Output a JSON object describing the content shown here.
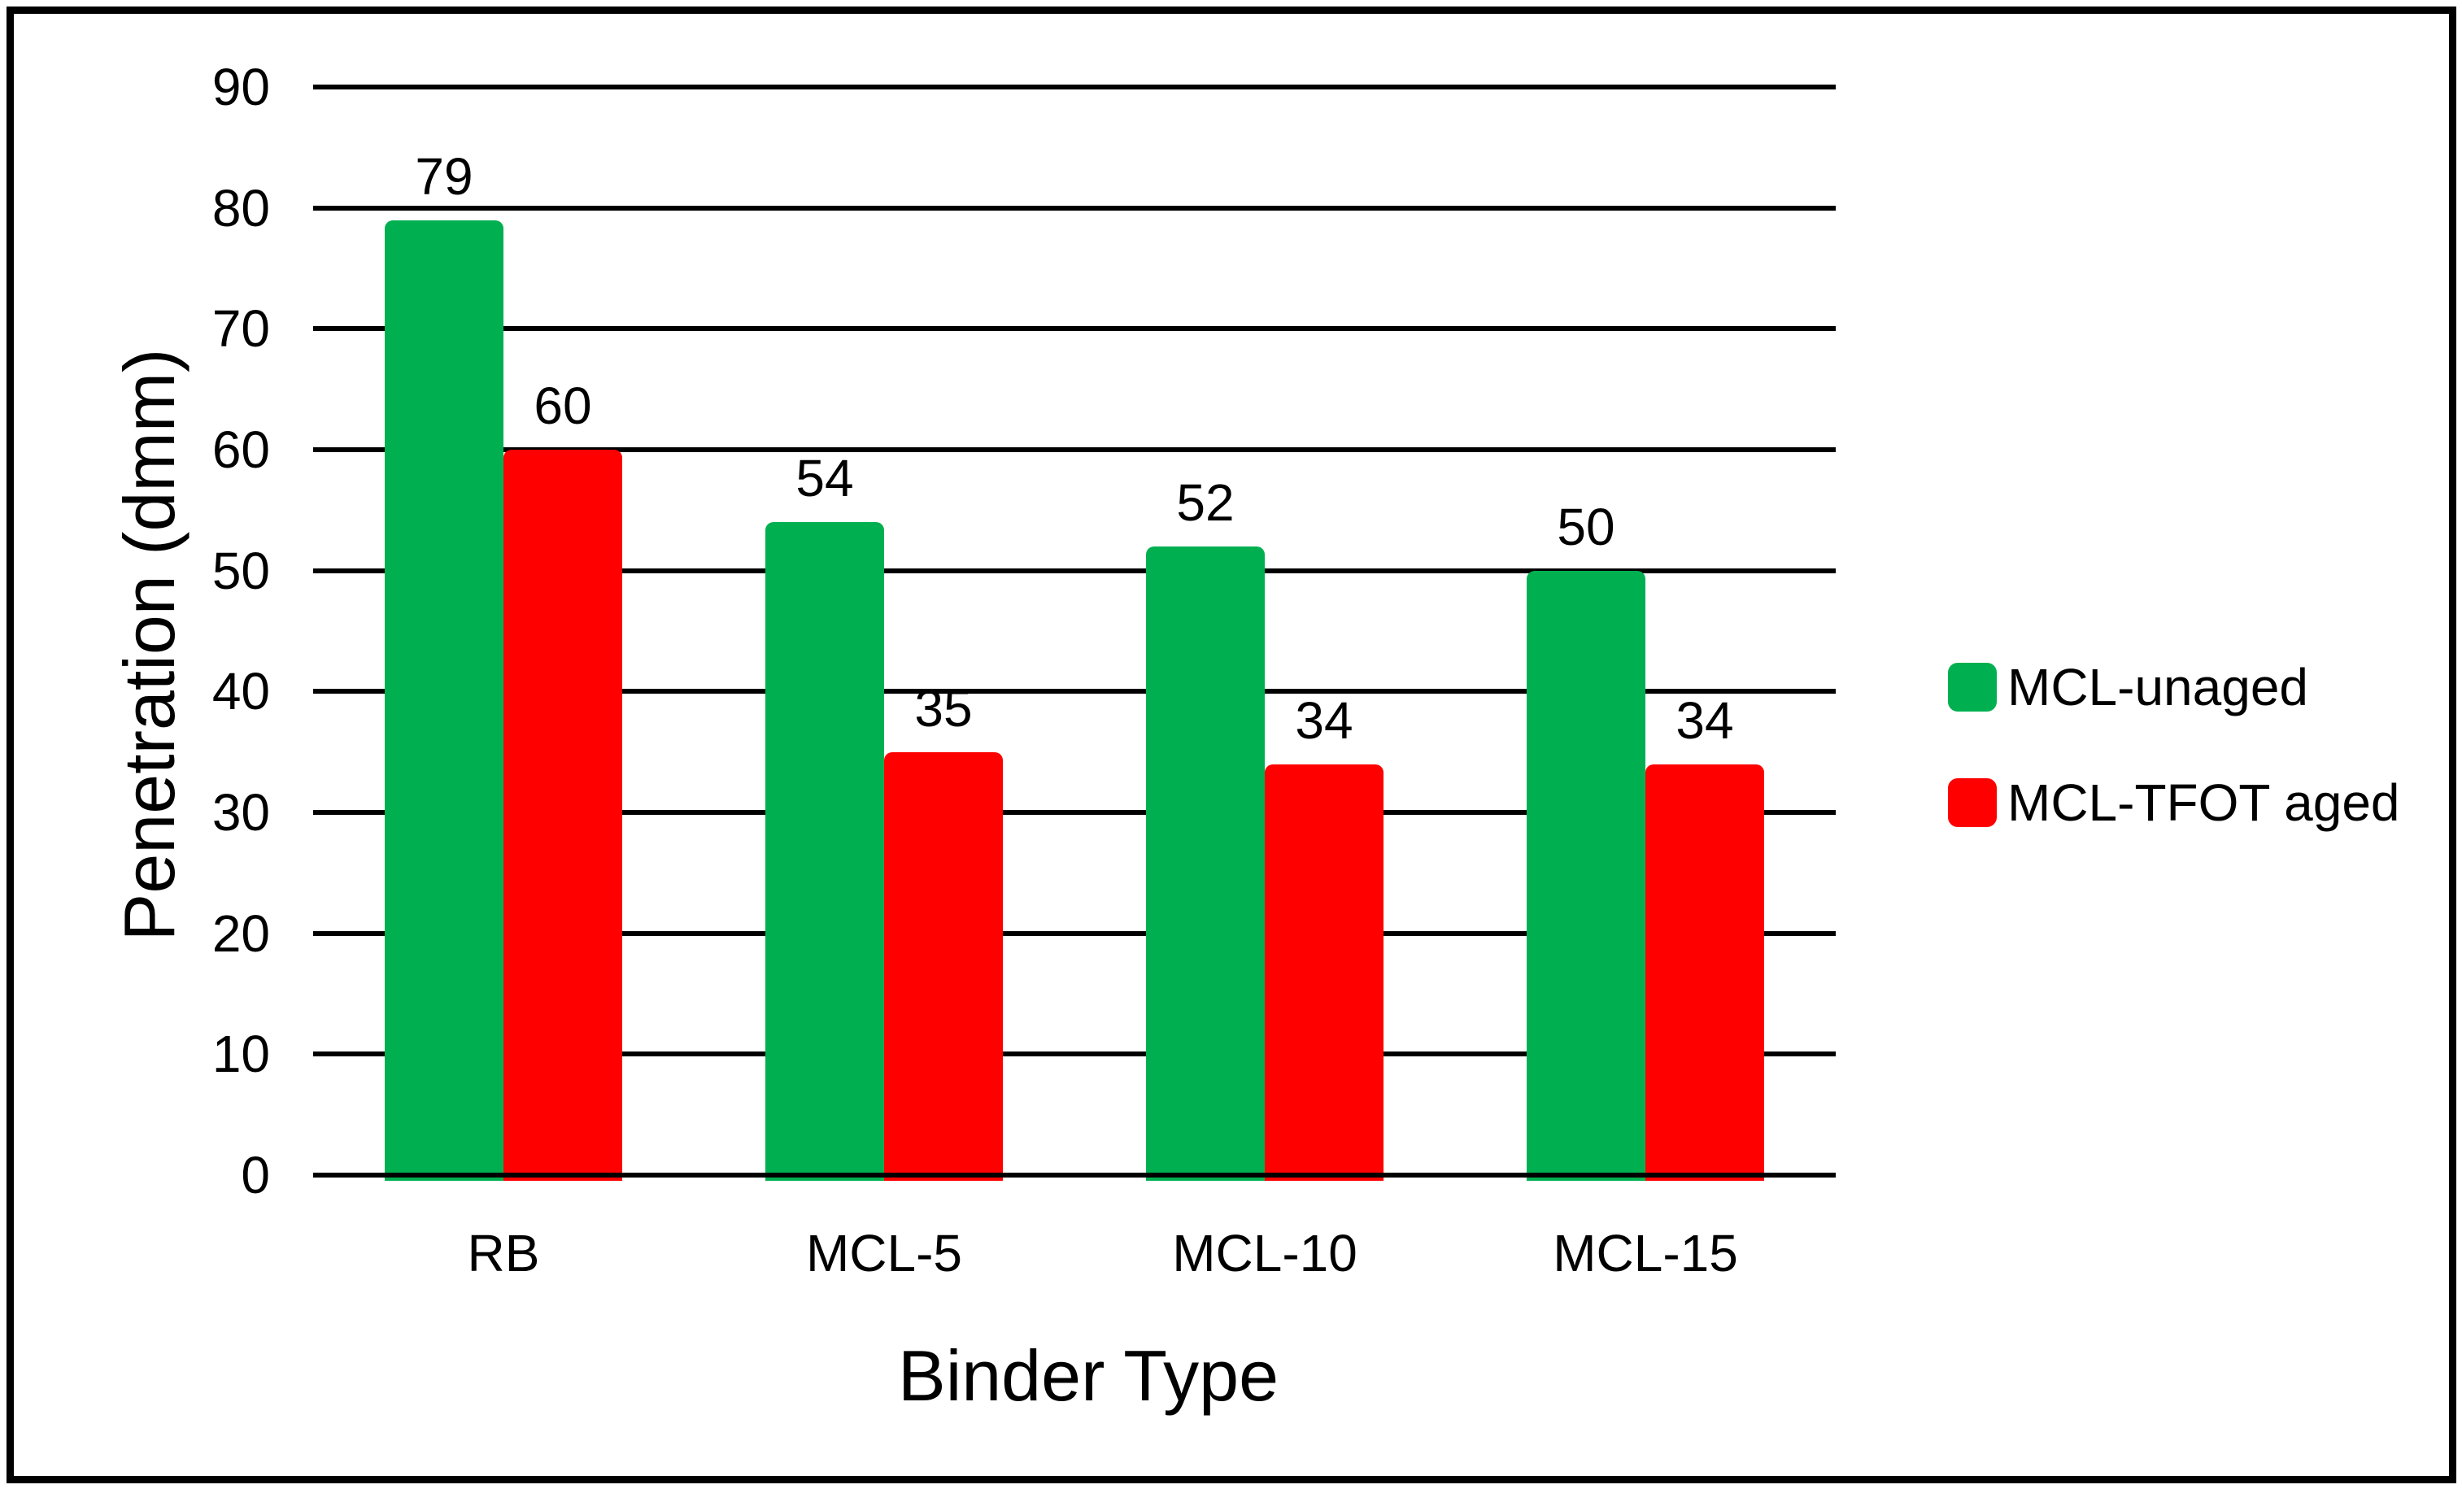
{
  "chart_data": {
    "type": "bar",
    "title": "",
    "xlabel": "Binder Type",
    "ylabel": "Penetration (dmm)",
    "categories": [
      "RB",
      "MCL-5",
      "MCL-10",
      "MCL-15"
    ],
    "series": [
      {
        "name": "MCL-unaged",
        "color": "#00B050",
        "values": [
          79,
          54,
          52,
          50
        ]
      },
      {
        "name": "MCL-TFOT aged",
        "color": "#FF0000",
        "values": [
          60,
          35,
          34,
          34
        ]
      }
    ],
    "data_labels": [
      [
        "79",
        "54",
        "52",
        "50"
      ],
      [
        "60",
        "35",
        "34",
        "34"
      ]
    ],
    "ylim": [
      0,
      90
    ],
    "ytick_step": 10,
    "yticks": [
      "0",
      "10",
      "20",
      "30",
      "40",
      "50",
      "60",
      "70",
      "80",
      "90"
    ],
    "grid": "horizontal",
    "gridline_color": "#000000",
    "bar_colors": {
      "MCL-unaged": "#00B050",
      "MCL-TFOT aged": "#FF0000"
    },
    "legend_position": "right",
    "legend_entries": [
      "MCL-unaged",
      "MCL-TFOT aged"
    ],
    "background_color": "#FFFFFF",
    "border_color": "#000000",
    "text_color": "#000000"
  }
}
